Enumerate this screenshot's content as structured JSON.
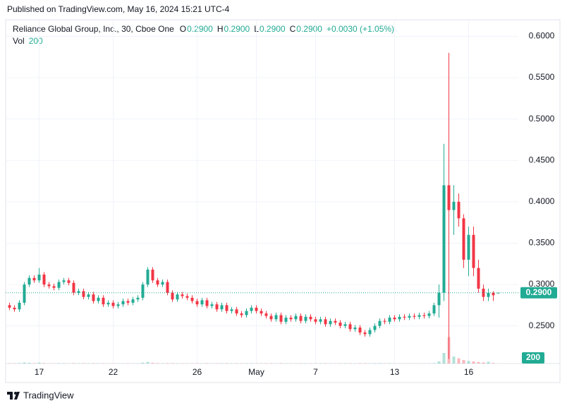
{
  "chart_data": {
    "type": "candlestick",
    "published": "Published on TradingView.com, May 16, 2024 15:21 UTC-4",
    "title": "Reliance Global Group, Inc., 30, Cboe One",
    "legend": [
      {
        "key": "O",
        "value": "0.2900"
      },
      {
        "key": "H",
        "value": "0.2900"
      },
      {
        "key": "L",
        "value": "0.2900"
      },
      {
        "key": "C",
        "value": "0.2900"
      }
    ],
    "change": "+0.0030 (+1.05%)",
    "volume_label": "Vol",
    "brand": "TradingView",
    "up_color": "#22ab94",
    "down_color": "#f23645",
    "grid": true,
    "ylim": [
      0.2045,
      0.62
    ],
    "yticks": [
      {
        "value": 0.25,
        "label": "0.2500"
      },
      {
        "value": 0.3,
        "label": "0.3000"
      },
      {
        "value": 0.35,
        "label": "0.3500"
      },
      {
        "value": 0.4,
        "label": "0.4000"
      },
      {
        "value": 0.45,
        "label": "0.4500"
      },
      {
        "value": 0.5,
        "label": "0.5000"
      },
      {
        "value": 0.55,
        "label": "0.5500"
      },
      {
        "value": 0.6,
        "label": "0.6000"
      }
    ],
    "last_price": {
      "value": 0.29,
      "label": "0.2900"
    },
    "volume_ylim": [
      0,
      400000
    ],
    "categories": [
      null,
      null,
      null,
      null,
      null,
      null,
      "17",
      null,
      null,
      null,
      null,
      null,
      null,
      null,
      null,
      null,
      null,
      null,
      null,
      null,
      null,
      "22",
      null,
      null,
      null,
      null,
      null,
      null,
      null,
      null,
      null,
      null,
      null,
      null,
      null,
      null,
      null,
      null,
      "26",
      null,
      null,
      null,
      null,
      null,
      null,
      null,
      null,
      null,
      null,
      null,
      "May",
      null,
      null,
      null,
      null,
      null,
      null,
      null,
      null,
      null,
      null,
      null,
      "7",
      null,
      null,
      null,
      null,
      null,
      null,
      null,
      null,
      null,
      null,
      null,
      null,
      null,
      null,
      null,
      "13",
      null,
      null,
      null,
      null,
      null,
      null,
      null,
      null,
      null,
      null,
      null,
      null,
      null,
      null,
      "16",
      null,
      null,
      null,
      null,
      null,
      null
    ],
    "open": [
      0.275,
      0.272,
      0.27,
      0.278,
      0.3,
      0.308,
      0.305,
      0.312,
      0.3,
      0.298,
      0.296,
      0.303,
      0.305,
      0.302,
      0.29,
      0.292,
      0.285,
      0.288,
      0.28,
      0.284,
      0.276,
      0.278,
      0.274,
      0.276,
      0.28,
      0.278,
      0.282,
      0.284,
      0.3,
      0.318,
      0.305,
      0.3,
      0.303,
      0.29,
      0.282,
      0.288,
      0.286,
      0.284,
      0.28,
      0.276,
      0.281,
      0.274,
      0.276,
      0.27,
      0.275,
      0.268,
      0.27,
      0.265,
      0.263,
      0.268,
      0.272,
      0.268,
      0.265,
      0.262,
      0.258,
      0.263,
      0.255,
      0.26,
      0.258,
      0.262,
      0.256,
      0.261,
      0.258,
      0.255,
      0.258,
      0.252,
      0.256,
      0.254,
      0.25,
      0.252,
      0.246,
      0.248,
      0.242,
      0.24,
      0.245,
      0.25,
      0.256,
      0.255,
      0.26,
      0.258,
      0.261,
      0.26,
      0.262,
      0.261,
      0.263,
      0.262,
      0.265,
      0.275,
      0.29,
      0.42,
      0.39,
      0.4,
      0.38,
      0.33,
      0.36,
      0.32,
      0.295,
      0.285,
      0.29,
      0.29
    ],
    "high": [
      0.278,
      0.275,
      0.281,
      0.303,
      0.311,
      0.311,
      0.32,
      0.315,
      0.303,
      0.301,
      0.306,
      0.308,
      0.308,
      0.305,
      0.295,
      0.295,
      0.291,
      0.291,
      0.287,
      0.287,
      0.281,
      0.281,
      0.279,
      0.283,
      0.283,
      0.285,
      0.287,
      0.303,
      0.321,
      0.321,
      0.308,
      0.306,
      0.306,
      0.293,
      0.291,
      0.291,
      0.289,
      0.287,
      0.283,
      0.284,
      0.284,
      0.279,
      0.279,
      0.278,
      0.278,
      0.273,
      0.273,
      0.268,
      0.271,
      0.275,
      0.275,
      0.271,
      0.268,
      0.265,
      0.266,
      0.266,
      0.263,
      0.263,
      0.265,
      0.265,
      0.264,
      0.264,
      0.261,
      0.261,
      0.261,
      0.259,
      0.259,
      0.257,
      0.255,
      0.255,
      0.251,
      0.251,
      0.245,
      0.248,
      0.253,
      0.259,
      0.259,
      0.263,
      0.263,
      0.264,
      0.264,
      0.265,
      0.265,
      0.266,
      0.266,
      0.268,
      0.278,
      0.3,
      0.47,
      0.58,
      0.42,
      0.41,
      0.385,
      0.37,
      0.37,
      0.33,
      0.3,
      0.295,
      0.292,
      0.29
    ],
    "low": [
      0.269,
      0.267,
      0.267,
      0.275,
      0.297,
      0.302,
      0.302,
      0.297,
      0.295,
      0.293,
      0.293,
      0.3,
      0.299,
      0.287,
      0.287,
      0.282,
      0.282,
      0.277,
      0.277,
      0.273,
      0.273,
      0.271,
      0.271,
      0.273,
      0.275,
      0.275,
      0.279,
      0.281,
      0.297,
      0.302,
      0.297,
      0.297,
      0.287,
      0.279,
      0.279,
      0.283,
      0.281,
      0.277,
      0.273,
      0.273,
      0.271,
      0.271,
      0.267,
      0.267,
      0.265,
      0.265,
      0.262,
      0.26,
      0.26,
      0.265,
      0.265,
      0.262,
      0.259,
      0.255,
      0.255,
      0.252,
      0.252,
      0.255,
      0.255,
      0.253,
      0.253,
      0.255,
      0.252,
      0.252,
      0.249,
      0.249,
      0.251,
      0.247,
      0.247,
      0.243,
      0.243,
      0.239,
      0.237,
      0.237,
      0.242,
      0.247,
      0.252,
      0.252,
      0.255,
      0.255,
      0.257,
      0.257,
      0.258,
      0.258,
      0.259,
      0.259,
      0.262,
      0.26,
      0.28,
      0.21,
      0.36,
      0.37,
      0.32,
      0.31,
      0.31,
      0.29,
      0.28,
      0.28,
      0.28,
      0.29
    ],
    "close": [
      0.272,
      0.27,
      0.278,
      0.3,
      0.308,
      0.305,
      0.312,
      0.3,
      0.298,
      0.296,
      0.303,
      0.305,
      0.302,
      0.29,
      0.292,
      0.285,
      0.288,
      0.28,
      0.284,
      0.276,
      0.278,
      0.274,
      0.276,
      0.28,
      0.278,
      0.282,
      0.284,
      0.3,
      0.318,
      0.305,
      0.3,
      0.303,
      0.29,
      0.282,
      0.288,
      0.286,
      0.284,
      0.28,
      0.276,
      0.281,
      0.274,
      0.276,
      0.27,
      0.275,
      0.268,
      0.27,
      0.265,
      0.263,
      0.268,
      0.272,
      0.268,
      0.265,
      0.262,
      0.258,
      0.263,
      0.255,
      0.26,
      0.258,
      0.262,
      0.256,
      0.261,
      0.258,
      0.255,
      0.258,
      0.252,
      0.256,
      0.254,
      0.25,
      0.252,
      0.246,
      0.248,
      0.242,
      0.24,
      0.245,
      0.25,
      0.256,
      0.255,
      0.26,
      0.258,
      0.261,
      0.26,
      0.262,
      0.261,
      0.263,
      0.262,
      0.265,
      0.275,
      0.29,
      0.42,
      0.39,
      0.4,
      0.38,
      0.33,
      0.36,
      0.32,
      0.295,
      0.285,
      0.29,
      0.287,
      0.29
    ],
    "volume": [
      1500,
      900,
      2500,
      6000,
      4000,
      2000,
      5000,
      2500,
      1200,
      800,
      1500,
      1800,
      1000,
      2500,
      1200,
      2000,
      900,
      1800,
      1000,
      1500,
      700,
      1200,
      800,
      1000,
      1500,
      900,
      1200,
      5000,
      9000,
      4000,
      2500,
      1500,
      2000,
      2200,
      1200,
      900,
      800,
      1200,
      1500,
      1000,
      1600,
      900,
      1200,
      1500,
      1800,
      900,
      1500,
      1200,
      1000,
      1600,
      1300,
      1100,
      1400,
      1800,
      1300,
      2000,
      1200,
      900,
      1100,
      1400,
      1300,
      900,
      1200,
      900,
      1400,
      1000,
      900,
      1300,
      1000,
      1500,
      900,
      1800,
      1600,
      1200,
      1800,
      2200,
      1000,
      1600,
      700,
      800,
      600,
      700,
      500,
      600,
      500,
      900,
      2500,
      12000,
      60000,
      150000,
      40000,
      30000,
      20000,
      15000,
      12000,
      8000,
      6000,
      10000,
      3000,
      200
    ]
  }
}
